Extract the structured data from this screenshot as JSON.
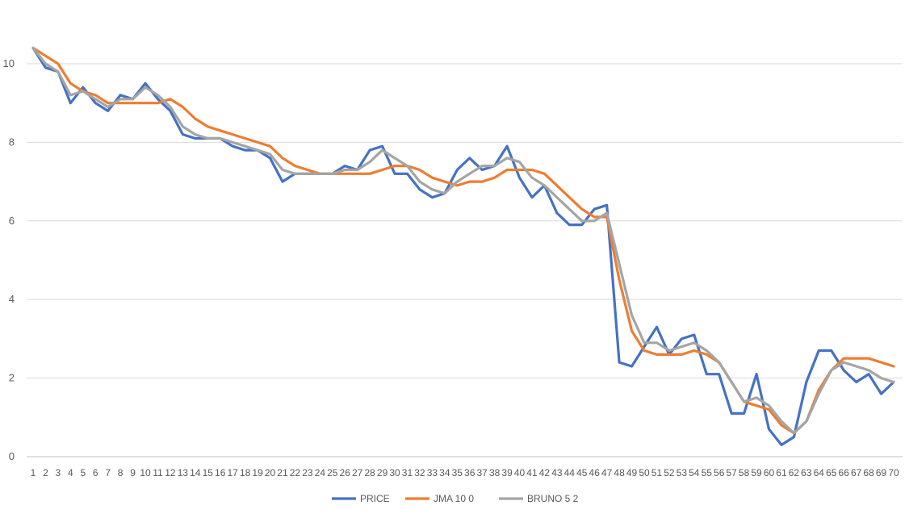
{
  "chart_data": {
    "type": "line",
    "x": [
      1,
      2,
      3,
      4,
      5,
      6,
      7,
      8,
      9,
      10,
      11,
      12,
      13,
      14,
      15,
      16,
      17,
      18,
      19,
      20,
      21,
      22,
      23,
      24,
      25,
      26,
      27,
      28,
      29,
      30,
      31,
      32,
      33,
      34,
      35,
      36,
      37,
      38,
      39,
      40,
      41,
      42,
      43,
      44,
      45,
      46,
      47,
      48,
      49,
      50,
      51,
      52,
      53,
      54,
      55,
      56,
      57,
      58,
      59,
      60,
      61,
      62,
      63,
      64,
      65,
      66,
      67,
      68,
      69,
      70
    ],
    "ylim": [
      0,
      10
    ],
    "yticks": [
      0,
      2,
      4,
      6,
      8,
      10
    ],
    "grid": true,
    "legend": "bottom",
    "series": [
      {
        "name": "PRICE",
        "color": "#4472c4",
        "values": [
          10.4,
          9.9,
          9.8,
          9.0,
          9.4,
          9.0,
          8.8,
          9.2,
          9.1,
          9.5,
          9.1,
          8.8,
          8.2,
          8.1,
          8.1,
          8.1,
          7.9,
          7.8,
          7.8,
          7.6,
          7.0,
          7.2,
          7.2,
          7.2,
          7.2,
          7.4,
          7.3,
          7.8,
          7.9,
          7.2,
          7.2,
          6.8,
          6.6,
          6.7,
          7.3,
          7.6,
          7.3,
          7.4,
          7.9,
          7.1,
          6.6,
          6.9,
          6.2,
          5.9,
          5.9,
          6.3,
          6.4,
          2.4,
          2.3,
          2.8,
          3.3,
          2.6,
          3.0,
          3.1,
          2.1,
          2.1,
          1.1,
          1.1,
          2.1,
          0.7,
          0.3,
          0.5,
          1.9,
          2.7,
          2.7,
          2.2,
          1.9,
          2.1,
          1.6,
          1.9
        ]
      },
      {
        "name": "JMA 10 0",
        "color": "#ed7d31",
        "values": [
          10.4,
          10.2,
          10.0,
          9.5,
          9.3,
          9.2,
          9.0,
          9.0,
          9.0,
          9.0,
          9.0,
          9.1,
          8.9,
          8.6,
          8.4,
          8.3,
          8.2,
          8.1,
          8.0,
          7.9,
          7.6,
          7.4,
          7.3,
          7.2,
          7.2,
          7.2,
          7.2,
          7.2,
          7.3,
          7.4,
          7.4,
          7.3,
          7.1,
          7.0,
          6.9,
          7.0,
          7.0,
          7.1,
          7.3,
          7.3,
          7.3,
          7.2,
          6.9,
          6.6,
          6.3,
          6.1,
          6.1,
          4.5,
          3.2,
          2.7,
          2.6,
          2.6,
          2.6,
          2.7,
          2.6,
          2.4,
          1.9,
          1.4,
          1.3,
          1.2,
          0.8,
          0.6,
          0.9,
          1.7,
          2.2,
          2.5,
          2.5,
          2.5,
          2.4,
          2.3
        ]
      },
      {
        "name": "BRUNO 5 2",
        "color": "#a5a5a5",
        "values": [
          10.4,
          10.0,
          9.8,
          9.2,
          9.3,
          9.1,
          8.9,
          9.1,
          9.1,
          9.4,
          9.2,
          8.9,
          8.4,
          8.2,
          8.1,
          8.1,
          8.0,
          7.9,
          7.8,
          7.7,
          7.3,
          7.2,
          7.2,
          7.2,
          7.2,
          7.3,
          7.3,
          7.5,
          7.8,
          7.6,
          7.4,
          7.0,
          6.8,
          6.7,
          7.0,
          7.2,
          7.4,
          7.4,
          7.6,
          7.5,
          7.1,
          6.9,
          6.6,
          6.3,
          6.0,
          6.0,
          6.2,
          4.9,
          3.6,
          2.9,
          2.9,
          2.7,
          2.8,
          2.9,
          2.7,
          2.4,
          1.9,
          1.4,
          1.5,
          1.3,
          0.9,
          0.6,
          0.9,
          1.6,
          2.2,
          2.4,
          2.3,
          2.2,
          2.0,
          1.9
        ]
      }
    ]
  }
}
